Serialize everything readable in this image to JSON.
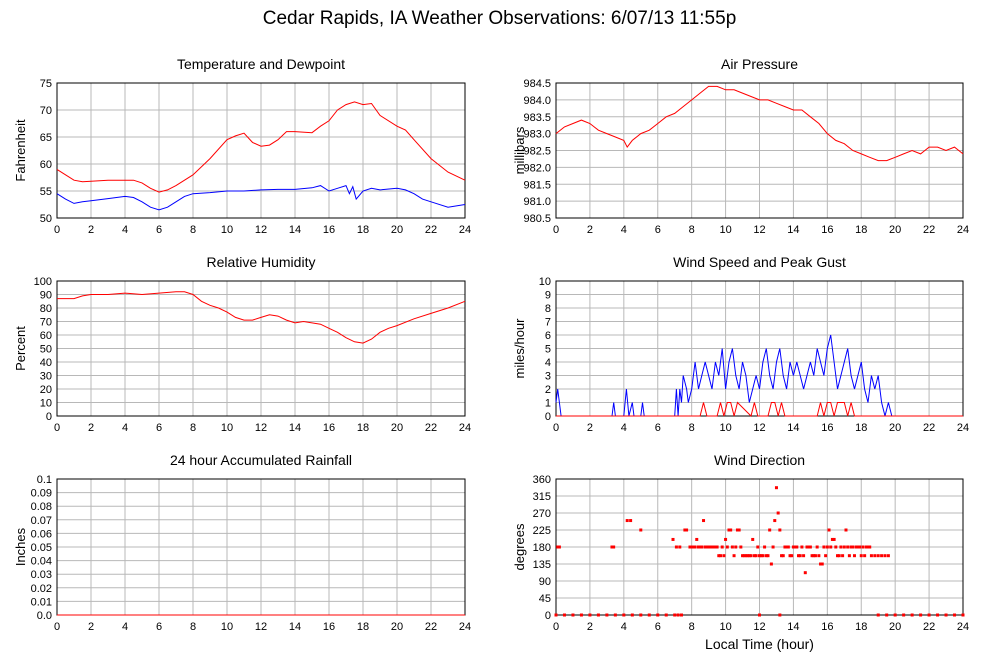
{
  "page": {
    "title": "Cedar Rapids, IA Weather Observations: 6/07/13 11:55p",
    "x_axis_label": "Local Time (hour)"
  },
  "colors": {
    "primary": "#ff0000",
    "secondary": "#0000ff",
    "grid": "#b8b8b8",
    "frame": "#000000"
  },
  "chart_data": [
    {
      "id": "temp",
      "type": "line",
      "title": "Temperature and Dewpoint",
      "ylabel": "Fahrenheit",
      "xlabel": "",
      "xlim": [
        0,
        24
      ],
      "ylim": [
        50,
        75
      ],
      "x_ticks": [
        0,
        2,
        4,
        6,
        8,
        10,
        12,
        14,
        16,
        18,
        20,
        22,
        24
      ],
      "y_ticks": [
        50,
        55,
        60,
        65,
        70,
        75
      ],
      "grid": true,
      "series": [
        {
          "color": "#ff0000",
          "x": [
            0,
            0.5,
            1,
            1.5,
            2,
            3,
            4,
            4.5,
            5,
            5.5,
            6,
            6.5,
            7,
            8,
            9,
            10,
            10.5,
            11,
            11.5,
            12,
            12.5,
            13,
            13.5,
            14,
            15,
            15.5,
            16,
            16.5,
            17,
            17.5,
            18,
            18.5,
            19,
            20,
            20.5,
            21,
            22,
            23,
            24
          ],
          "y": [
            59,
            58,
            57,
            56.7,
            56.8,
            57,
            57,
            57,
            56.5,
            55.5,
            54.8,
            55.2,
            56,
            58,
            61,
            64.5,
            65.2,
            65.7,
            64,
            63.3,
            63.5,
            64.5,
            66,
            66,
            65.8,
            67,
            68,
            70,
            71,
            71.5,
            71,
            71.2,
            69,
            67,
            66.3,
            64.5,
            61,
            58.5,
            57
          ]
        },
        {
          "color": "#0000ff",
          "x": [
            0,
            0.5,
            1,
            1.5,
            2,
            3,
            4,
            4.5,
            5,
            5.5,
            6,
            6.5,
            7,
            7.5,
            8,
            9,
            10,
            11,
            12,
            13,
            14,
            15,
            15.5,
            16,
            16.5,
            17,
            17.2,
            17.4,
            17.6,
            18,
            18.5,
            19,
            20,
            20.5,
            21,
            21.5,
            22,
            23,
            24
          ],
          "y": [
            54.5,
            53.5,
            52.7,
            53,
            53.2,
            53.6,
            54,
            53.8,
            53,
            52,
            51.5,
            52,
            53,
            54,
            54.5,
            54.7,
            55,
            55,
            55.2,
            55.3,
            55.3,
            55.6,
            56,
            55,
            55.5,
            56,
            54.5,
            55.8,
            53.5,
            55,
            55.5,
            55.2,
            55.5,
            55.2,
            54.5,
            53.5,
            53,
            52,
            52.5
          ]
        }
      ]
    },
    {
      "id": "pressure",
      "type": "line",
      "title": "Air Pressure",
      "ylabel": "millibars",
      "xlabel": "",
      "xlim": [
        0,
        24
      ],
      "ylim": [
        980.5,
        984.5
      ],
      "x_ticks": [
        0,
        2,
        4,
        6,
        8,
        10,
        12,
        14,
        16,
        18,
        20,
        22,
        24
      ],
      "y_ticks": [
        "980.5",
        "981.0",
        "981.5",
        "982.0",
        "982.5",
        "983.0",
        "983.5",
        "984.0",
        "984.5"
      ],
      "grid": true,
      "series": [
        {
          "color": "#ff0000",
          "x": [
            0,
            0.5,
            1,
            1.5,
            2,
            2.5,
            3,
            3.5,
            4,
            4.2,
            4.5,
            5,
            5.5,
            6,
            6.5,
            7,
            7.5,
            8,
            8.5,
            9,
            9.5,
            10,
            10.5,
            11,
            11.5,
            12,
            12.5,
            13,
            13.5,
            14,
            14.5,
            15,
            15.5,
            16,
            16.5,
            17,
            17.5,
            18,
            18.5,
            19,
            19.5,
            20,
            20.5,
            21,
            21.5,
            22,
            22.5,
            23,
            23.5,
            24
          ],
          "y": [
            983.0,
            983.2,
            983.3,
            983.4,
            983.3,
            983.1,
            983.0,
            982.9,
            982.8,
            982.6,
            982.8,
            983.0,
            983.1,
            983.3,
            983.5,
            983.6,
            983.8,
            984.0,
            984.2,
            984.4,
            984.4,
            984.3,
            984.3,
            984.2,
            984.1,
            984.0,
            984.0,
            983.9,
            983.8,
            983.7,
            983.7,
            983.5,
            983.3,
            983.0,
            982.8,
            982.7,
            982.5,
            982.4,
            982.3,
            982.2,
            982.2,
            982.3,
            982.4,
            982.5,
            982.4,
            982.6,
            982.6,
            982.5,
            982.6,
            982.4
          ]
        }
      ]
    },
    {
      "id": "rh",
      "type": "line",
      "title": "Relative Humidity",
      "ylabel": "Percent",
      "xlabel": "",
      "xlim": [
        0,
        24
      ],
      "ylim": [
        0,
        100
      ],
      "x_ticks": [
        0,
        2,
        4,
        6,
        8,
        10,
        12,
        14,
        16,
        18,
        20,
        22,
        24
      ],
      "y_ticks": [
        0,
        10,
        20,
        30,
        40,
        50,
        60,
        70,
        80,
        90,
        100
      ],
      "grid": true,
      "series": [
        {
          "color": "#ff0000",
          "x": [
            0,
            1,
            1.5,
            2,
            3,
            4,
            5,
            6,
            7,
            7.5,
            8,
            8.5,
            9,
            9.5,
            10,
            10.5,
            11,
            11.5,
            12,
            12.5,
            13,
            13.5,
            14,
            14.5,
            15,
            15.5,
            16,
            16.5,
            17,
            17.5,
            18,
            18.5,
            19,
            19.5,
            20,
            21,
            22,
            23,
            24
          ],
          "y": [
            87,
            87,
            89,
            90,
            90,
            91,
            90,
            91,
            92,
            92,
            90,
            85,
            82,
            80,
            77,
            73,
            71,
            71,
            73,
            75,
            74,
            71,
            69,
            70,
            69,
            68,
            65,
            62,
            58,
            55,
            54,
            57,
            62,
            65,
            67,
            72,
            76,
            80,
            85
          ]
        }
      ]
    },
    {
      "id": "wind",
      "type": "line",
      "title": "Wind Speed and Peak Gust",
      "ylabel": "miles/hour",
      "xlabel": "",
      "xlim": [
        0,
        24
      ],
      "ylim": [
        0,
        10
      ],
      "x_ticks": [
        0,
        2,
        4,
        6,
        8,
        10,
        12,
        14,
        16,
        18,
        20,
        22,
        24
      ],
      "y_ticks": [
        0,
        1,
        2,
        3,
        4,
        5,
        6,
        7,
        8,
        9,
        10
      ],
      "grid": true,
      "series": [
        {
          "color": "#0000ff",
          "x": [
            0,
            0.1,
            0.3,
            3.3,
            3.4,
            3.5,
            3.6,
            4.0,
            4.15,
            4.3,
            4.5,
            4.6,
            4.7,
            5.0,
            5.1,
            5.2,
            7.0,
            7.1,
            7.2,
            7.3,
            7.4,
            7.5,
            7.7,
            7.8,
            8.0,
            8.2,
            8.4,
            8.6,
            8.8,
            9.0,
            9.2,
            9.4,
            9.6,
            9.8,
            10.0,
            10.2,
            10.4,
            10.6,
            10.8,
            11.0,
            11.2,
            11.4,
            11.6,
            11.8,
            12.0,
            12.2,
            12.4,
            12.6,
            12.8,
            13.0,
            13.2,
            13.4,
            13.6,
            13.8,
            14.0,
            14.2,
            14.4,
            14.6,
            14.8,
            15.0,
            15.2,
            15.4,
            15.6,
            15.8,
            16.0,
            16.2,
            16.4,
            16.6,
            16.8,
            17.0,
            17.2,
            17.4,
            17.6,
            17.8,
            18.0,
            18.2,
            18.4,
            18.6,
            18.8,
            19.0,
            19.2,
            19.4,
            19.6,
            19.8,
            24
          ],
          "y": [
            1,
            2,
            0,
            0,
            1,
            0,
            0,
            0,
            2,
            0,
            1,
            0,
            0,
            0,
            1,
            0,
            0,
            2,
            0,
            2,
            1,
            3,
            2,
            1,
            2,
            4,
            2,
            3,
            4,
            3,
            2,
            4,
            3,
            5,
            2,
            4,
            5,
            3,
            2,
            4,
            3,
            1,
            2,
            3,
            2,
            4,
            5,
            3,
            2,
            4,
            5,
            3,
            2,
            4,
            3,
            4,
            3,
            2,
            3,
            4,
            3,
            5,
            4,
            3,
            5,
            6,
            4,
            2,
            3,
            4,
            5,
            3,
            2,
            3,
            4,
            2,
            1,
            3,
            2,
            3,
            1,
            0,
            1,
            0,
            0
          ]
        },
        {
          "color": "#ff0000",
          "x": [
            0,
            8.5,
            8.7,
            8.9,
            9.5,
            9.7,
            9.9,
            10.1,
            10.3,
            10.5,
            10.7,
            11.5,
            11.7,
            11.9,
            12.5,
            12.7,
            12.9,
            13.1,
            13.3,
            13.5,
            15.4,
            15.6,
            15.8,
            16.0,
            16.2,
            16.4,
            16.6,
            16.8,
            17.0,
            17.2,
            17.4,
            17.6,
            24
          ],
          "y": [
            0,
            0,
            1,
            0,
            0,
            1,
            0,
            1,
            1,
            0,
            1,
            0,
            1,
            0,
            0,
            1,
            1,
            0,
            1,
            0,
            0,
            1,
            0,
            1,
            1,
            0,
            1,
            1,
            1,
            0,
            1,
            0,
            0
          ]
        }
      ]
    },
    {
      "id": "rain",
      "type": "line",
      "title": "24 hour Accumulated Rainfall",
      "ylabel": "Inches",
      "xlabel": "",
      "xlim": [
        0,
        24
      ],
      "ylim": [
        0,
        0.1
      ],
      "x_ticks": [
        0,
        2,
        4,
        6,
        8,
        10,
        12,
        14,
        16,
        18,
        20,
        22,
        24
      ],
      "y_ticks": [
        "0.0",
        "0.01",
        "0.02",
        "0.03",
        "0.04",
        "0.05",
        "0.06",
        "0.07",
        "0.08",
        "0.09",
        "0.1"
      ],
      "grid": true,
      "series": [
        {
          "color": "#ff0000",
          "x": [
            0,
            24
          ],
          "y": [
            0,
            0
          ]
        }
      ]
    },
    {
      "id": "dir",
      "type": "scatter",
      "title": "Wind Direction",
      "ylabel": "degrees",
      "xlabel": "Local Time (hour)",
      "xlim": [
        0,
        24
      ],
      "ylim": [
        0,
        360
      ],
      "x_ticks": [
        0,
        2,
        4,
        6,
        8,
        10,
        12,
        14,
        16,
        18,
        20,
        22,
        24
      ],
      "y_ticks": [
        0,
        45,
        90,
        135,
        180,
        225,
        270,
        315,
        360
      ],
      "grid": true,
      "series": [
        {
          "color": "#ff0000",
          "x": [
            0.1,
            0.2,
            3.3,
            3.4,
            4.2,
            4.4,
            5.0,
            6.9,
            7.1,
            7.3,
            7.6,
            7.7,
            7.9,
            8.0,
            8.1,
            8.2,
            8.3,
            8.4,
            8.5,
            8.6,
            8.7,
            8.8,
            8.9,
            9.0,
            9.1,
            9.2,
            9.3,
            9.4,
            9.5,
            9.6,
            9.7,
            9.8,
            9.9,
            10.0,
            10.1,
            10.2,
            10.3,
            10.4,
            10.5,
            10.6,
            10.7,
            10.8,
            10.9,
            11.0,
            11.1,
            11.2,
            11.3,
            11.4,
            11.5,
            11.6,
            11.7,
            11.8,
            11.9,
            12.0,
            12.1,
            12.2,
            12.3,
            12.4,
            12.5,
            12.6,
            12.7,
            12.8,
            12.9,
            13.0,
            13.1,
            13.2,
            13.3,
            13.4,
            13.5,
            13.6,
            13.7,
            13.8,
            13.9,
            14.0,
            14.1,
            14.2,
            14.3,
            14.4,
            14.5,
            14.6,
            14.7,
            14.8,
            14.9,
            15.0,
            15.1,
            15.2,
            15.3,
            15.4,
            15.5,
            15.6,
            15.7,
            15.8,
            15.9,
            16.0,
            16.1,
            16.2,
            16.3,
            16.4,
            16.5,
            16.6,
            16.7,
            16.8,
            16.9,
            17.0,
            17.1,
            17.2,
            17.3,
            17.4,
            17.5,
            17.6,
            17.7,
            17.8,
            17.9,
            18.0,
            18.1,
            18.2,
            18.3,
            18.4,
            18.5,
            18.6,
            18.8,
            19.0,
            19.2,
            19.4,
            19.6
          ],
          "y": [
            180,
            180,
            180,
            180,
            250,
            250,
            225,
            200,
            180,
            180,
            225,
            225,
            180,
            180,
            180,
            180,
            200,
            180,
            180,
            180,
            250,
            180,
            180,
            180,
            180,
            180,
            180,
            180,
            180,
            157,
            157,
            180,
            157,
            200,
            180,
            225,
            225,
            180,
            157,
            180,
            225,
            225,
            180,
            157,
            157,
            157,
            157,
            157,
            157,
            200,
            157,
            157,
            180,
            157,
            157,
            157,
            180,
            157,
            157,
            225,
            135,
            180,
            250,
            337,
            270,
            225,
            157,
            157,
            180,
            180,
            180,
            157,
            157,
            180,
            180,
            180,
            157,
            157,
            180,
            157,
            112,
            180,
            180,
            180,
            157,
            157,
            157,
            180,
            157,
            135,
            135,
            180,
            157,
            180,
            225,
            180,
            200,
            200,
            180,
            157,
            157,
            180,
            157,
            180,
            225,
            180,
            157,
            180,
            180,
            157,
            180,
            180,
            180,
            157,
            180,
            157,
            180,
            180,
            180,
            157,
            157,
            157,
            157,
            157,
            157
          ]
        },
        {
          "color": "#ff0000",
          "x": [
            0,
            0.5,
            1,
            1.5,
            2,
            2.5,
            3,
            3.5,
            4,
            4.5,
            5,
            5.5,
            6,
            6.5,
            7,
            7.2,
            7.4,
            12.0,
            13.2,
            19.0,
            19.5,
            20,
            20.5,
            21,
            21.5,
            22,
            22.5,
            23,
            23.5,
            24
          ],
          "y": [
            0,
            0,
            0,
            0,
            0,
            0,
            0,
            0,
            0,
            0,
            0,
            0,
            0,
            0,
            0,
            0,
            0,
            0,
            0,
            0,
            0,
            0,
            0,
            0,
            0,
            0,
            0,
            0,
            0,
            0
          ]
        }
      ]
    }
  ]
}
